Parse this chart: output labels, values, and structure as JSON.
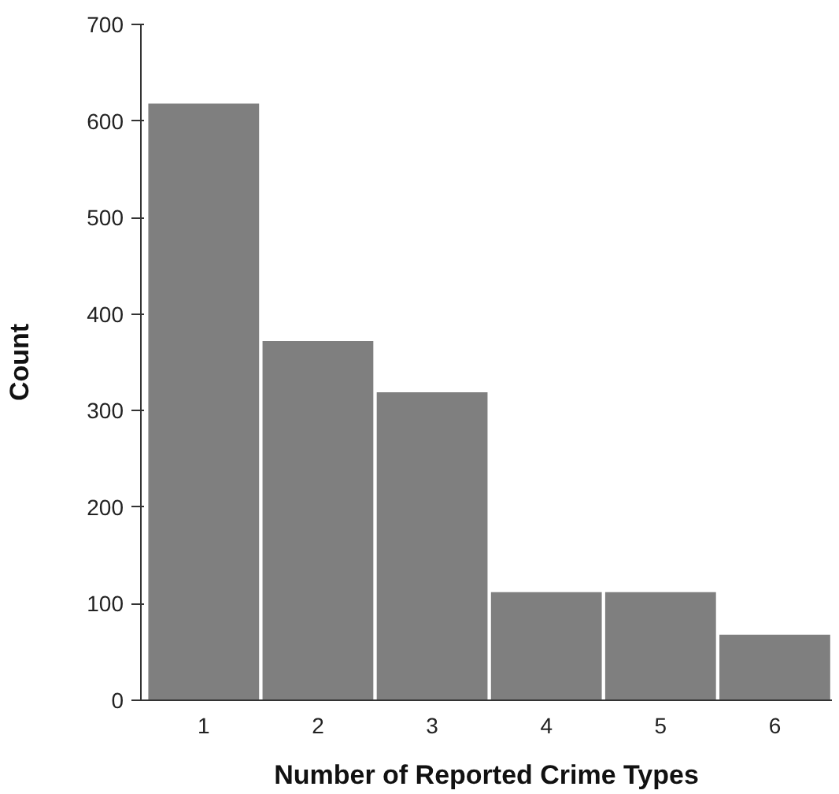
{
  "chart_data": {
    "type": "bar",
    "xlabel": "Number of Reported Crime Types",
    "ylabel": "Count",
    "categories": [
      "1",
      "2",
      "3",
      "4",
      "5",
      "6"
    ],
    "values": [
      618,
      372,
      319,
      112,
      112,
      68
    ],
    "color": "#7f7f7f",
    "ylim": [
      0,
      700
    ],
    "yticks": [
      0,
      100,
      200,
      300,
      400,
      500,
      600,
      700
    ],
    "grid": false
  }
}
